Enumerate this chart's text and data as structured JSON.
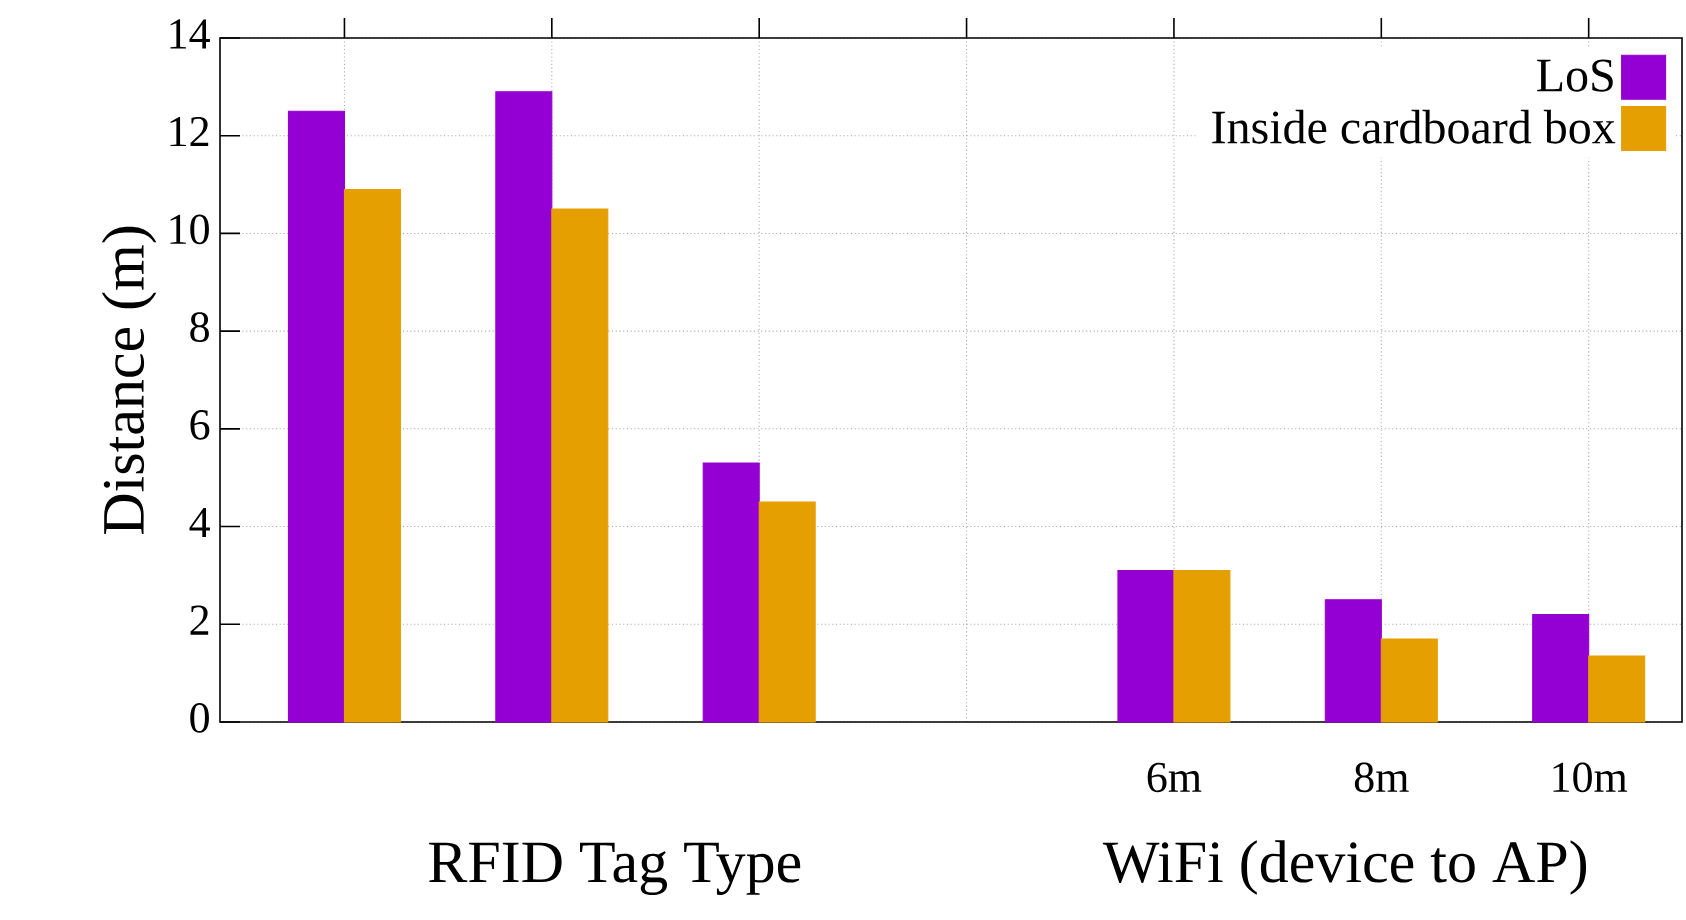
{
  "chart_data": {
    "type": "bar",
    "ylabel": "Distance (m)",
    "categories": [
      null,
      null,
      null,
      null,
      "6m",
      "8m",
      "10m"
    ],
    "series": [
      {
        "name": "LoS",
        "color": "#9400d3",
        "values": [
          12.5,
          12.9,
          5.3,
          null,
          3.1,
          2.5,
          2.2
        ]
      },
      {
        "name": "Inside cardboard box",
        "color": "#e69f00",
        "values": [
          10.9,
          10.5,
          4.5,
          null,
          3.1,
          1.7,
          1.35
        ]
      }
    ],
    "ylim": [
      0,
      14
    ],
    "yticks": [
      0,
      2,
      4,
      6,
      8,
      10,
      12,
      14
    ],
    "grid": true,
    "legend": "top right",
    "annotations": [
      "RFID Tag Type",
      "WiFi (device to AP)"
    ]
  }
}
